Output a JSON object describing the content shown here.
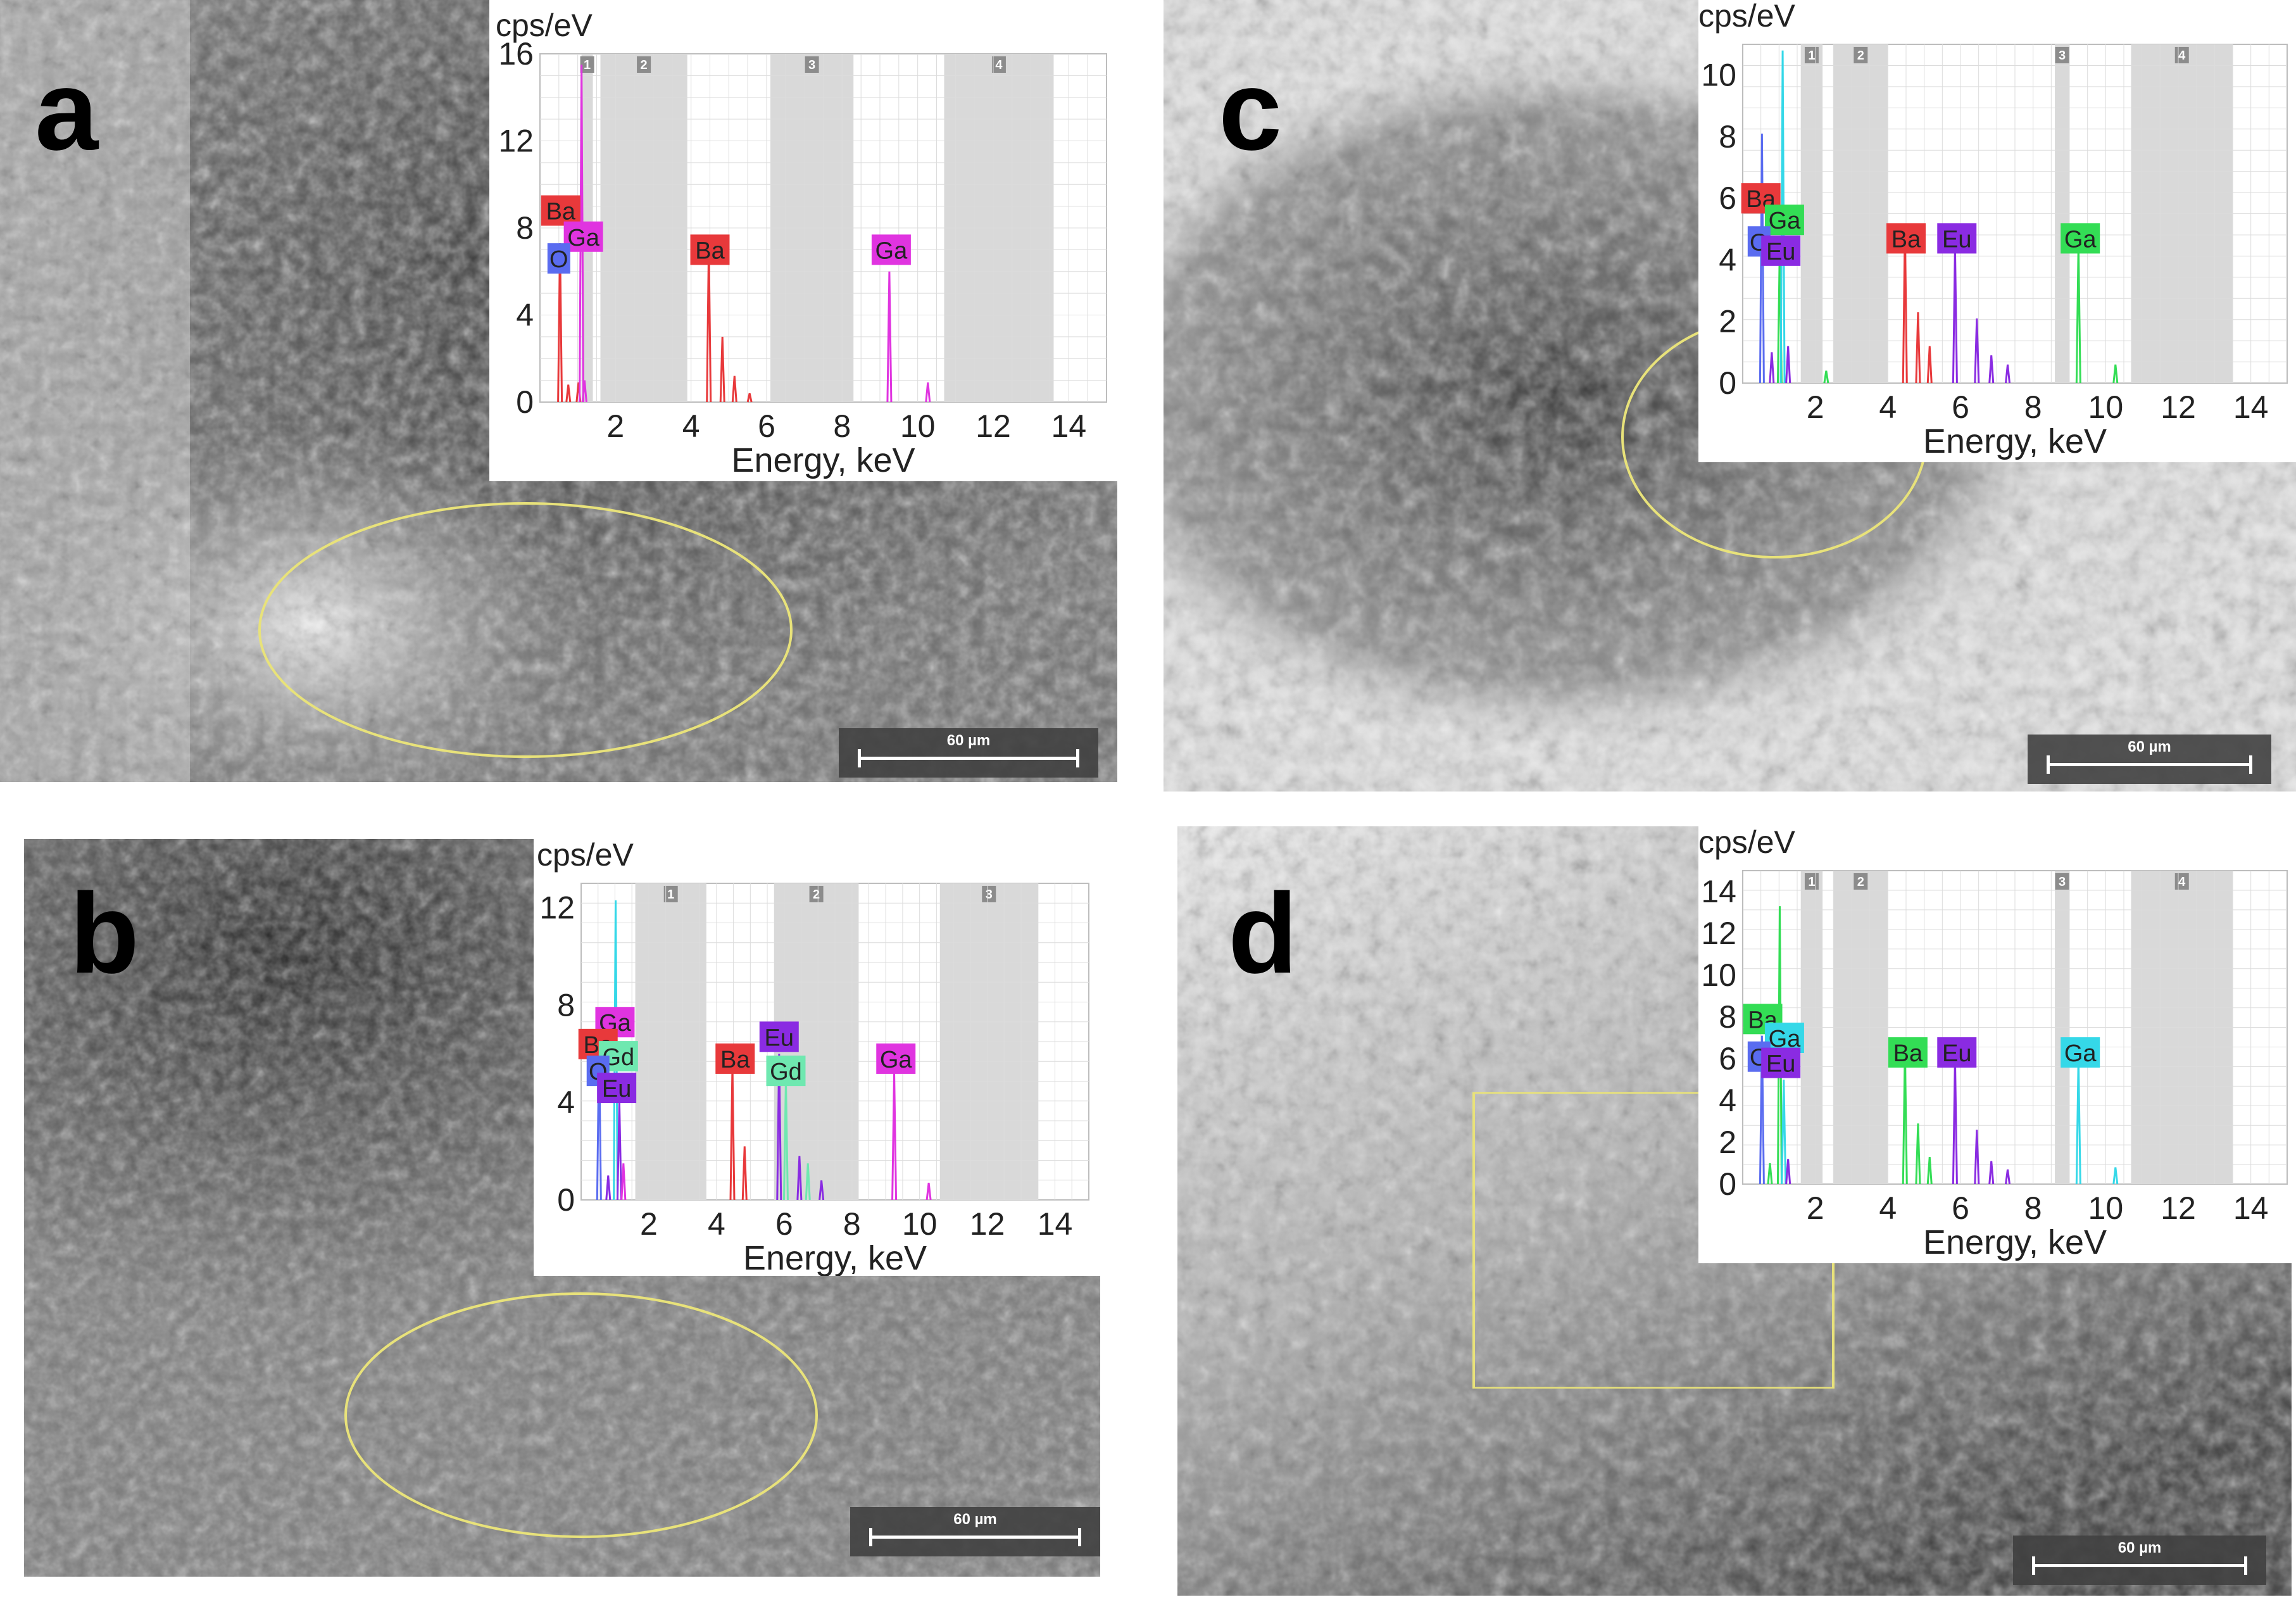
{
  "panels": [
    {
      "letter": "a",
      "spot_label": "",
      "scale_label": "60 µm"
    },
    {
      "letter": "b",
      "spot_label": "",
      "scale_label": "60 µm"
    },
    {
      "letter": "c",
      "spot_label": "",
      "scale_label": "60 µm"
    },
    {
      "letter": "d",
      "spot_label": "",
      "scale_label": "60 µm"
    }
  ],
  "colors": {
    "Ba_red": "#e8393b",
    "Ga_magenta": "#e034e0",
    "O_blue": "#5a6cf0",
    "Gd_mint": "#6fe8b0",
    "Eu_purple": "#8a2be2",
    "Ga_green": "#33dd55",
    "Ga_cyan": "#35d8e8",
    "Ba_green": "#33dd55",
    "region_ellipse": "#e8e27a",
    "grid": "#dcdcdc",
    "shade": "#d9d9d9"
  },
  "chart_data": [
    {
      "type": "line",
      "panel": "a",
      "ylabel": "cps/eV",
      "xlabel": "Energy, keV",
      "xlim": [
        0,
        15
      ],
      "ylim": [
        0,
        16
      ],
      "xticks": [
        2,
        4,
        6,
        8,
        10,
        12,
        14
      ],
      "yticks": [
        0,
        4,
        8,
        12,
        16
      ],
      "regions": [
        {
          "label": "1",
          "x0": 1.1,
          "x1": 1.4
        },
        {
          "label": "2",
          "x0": 1.6,
          "x1": 3.9
        },
        {
          "label": "3",
          "x0": 6.1,
          "x1": 8.3
        },
        {
          "label": "4",
          "x0": 10.7,
          "x1": 13.6
        }
      ],
      "peaks": [
        {
          "x": 0.53,
          "y": 7.3,
          "color": "#e8393b"
        },
        {
          "x": 0.75,
          "y": 0.8,
          "color": "#e8393b"
        },
        {
          "x": 1.02,
          "y": 0.9,
          "color": "#e8393b"
        },
        {
          "x": 1.1,
          "y": 15.5,
          "color": "#e034e0"
        },
        {
          "x": 1.18,
          "y": 1.0,
          "color": "#e034e0"
        },
        {
          "x": 4.47,
          "y": 7.3,
          "color": "#e8393b"
        },
        {
          "x": 4.83,
          "y": 3.0,
          "color": "#e8393b"
        },
        {
          "x": 5.15,
          "y": 1.2,
          "color": "#e8393b"
        },
        {
          "x": 5.55,
          "y": 0.4,
          "color": "#e8393b"
        },
        {
          "x": 9.25,
          "y": 6.0,
          "color": "#e034e0"
        },
        {
          "x": 10.27,
          "y": 0.9,
          "color": "#e034e0"
        }
      ],
      "element_labels": [
        {
          "text": "Ba",
          "x": 0.55,
          "y": 8.8,
          "color": "#e8393b"
        },
        {
          "text": "Ga",
          "x": 1.15,
          "y": 7.6,
          "color": "#e034e0"
        },
        {
          "text": "O",
          "x": 0.5,
          "y": 6.6,
          "color": "#5a6cf0"
        },
        {
          "text": "Ba",
          "x": 4.5,
          "y": 7.0,
          "color": "#e8393b"
        },
        {
          "text": "Ga",
          "x": 9.3,
          "y": 7.0,
          "color": "#e034e0"
        }
      ]
    },
    {
      "type": "line",
      "panel": "b",
      "ylabel": "cps/eV",
      "xlabel": "Energy, keV",
      "xlim": [
        0,
        15
      ],
      "ylim": [
        0,
        13
      ],
      "xticks": [
        2,
        4,
        6,
        8,
        10,
        12,
        14
      ],
      "yticks": [
        0,
        4,
        8,
        12
      ],
      "regions": [
        {
          "label": "1",
          "x0": 1.6,
          "x1": 3.7
        },
        {
          "label": "2",
          "x0": 5.7,
          "x1": 8.2
        },
        {
          "label": "3",
          "x0": 10.6,
          "x1": 13.5
        }
      ],
      "peaks": [
        {
          "x": 0.53,
          "y": 6.5,
          "color": "#5a6cf0"
        },
        {
          "x": 0.8,
          "y": 1.0,
          "color": "#8a2be2"
        },
        {
          "x": 1.02,
          "y": 12.3,
          "color": "#35d8e8"
        },
        {
          "x": 1.13,
          "y": 4.0,
          "color": "#8a2be2"
        },
        {
          "x": 1.25,
          "y": 1.5,
          "color": "#e034e0"
        },
        {
          "x": 4.47,
          "y": 5.5,
          "color": "#e8393b"
        },
        {
          "x": 4.83,
          "y": 2.2,
          "color": "#e8393b"
        },
        {
          "x": 5.85,
          "y": 6.0,
          "color": "#8a2be2"
        },
        {
          "x": 6.05,
          "y": 5.0,
          "color": "#6fe8b0"
        },
        {
          "x": 6.45,
          "y": 1.8,
          "color": "#8a2be2"
        },
        {
          "x": 6.7,
          "y": 1.5,
          "color": "#6fe8b0"
        },
        {
          "x": 7.1,
          "y": 0.8,
          "color": "#8a2be2"
        },
        {
          "x": 9.25,
          "y": 5.2,
          "color": "#e034e0"
        },
        {
          "x": 10.27,
          "y": 0.7,
          "color": "#e034e0"
        }
      ],
      "element_labels": [
        {
          "text": "Ga",
          "x": 1.0,
          "y": 7.3,
          "color": "#e034e0"
        },
        {
          "text": "Ba",
          "x": 0.5,
          "y": 6.4,
          "color": "#e8393b"
        },
        {
          "text": "Gd",
          "x": 1.1,
          "y": 5.9,
          "color": "#6fe8b0"
        },
        {
          "text": "O",
          "x": 0.5,
          "y": 5.3,
          "color": "#5a6cf0"
        },
        {
          "text": "Eu",
          "x": 1.05,
          "y": 4.6,
          "color": "#8a2be2"
        },
        {
          "text": "Ba",
          "x": 4.55,
          "y": 5.8,
          "color": "#e8393b"
        },
        {
          "text": "Eu",
          "x": 5.85,
          "y": 6.7,
          "color": "#8a2be2"
        },
        {
          "text": "Gd",
          "x": 6.05,
          "y": 5.3,
          "color": "#6fe8b0"
        },
        {
          "text": "Ga",
          "x": 9.3,
          "y": 5.8,
          "color": "#e034e0"
        }
      ]
    },
    {
      "type": "line",
      "panel": "c",
      "ylabel": "cps/eV",
      "xlabel": "Energy, keV",
      "xlim": [
        0,
        15
      ],
      "ylim": [
        0,
        11
      ],
      "xticks": [
        2,
        4,
        6,
        8,
        10,
        12,
        14
      ],
      "yticks": [
        0,
        2,
        4,
        6,
        8,
        10
      ],
      "regions": [
        {
          "label": "1",
          "x0": 1.6,
          "x1": 2.2
        },
        {
          "label": "2",
          "x0": 2.5,
          "x1": 4.0
        },
        {
          "label": "3",
          "x0": 8.6,
          "x1": 9.0
        },
        {
          "label": "4",
          "x0": 10.7,
          "x1": 13.5
        }
      ],
      "peaks": [
        {
          "x": 0.53,
          "y": 8.1,
          "color": "#5a6cf0"
        },
        {
          "x": 0.8,
          "y": 1.0,
          "color": "#8a2be2"
        },
        {
          "x": 1.02,
          "y": 4.5,
          "color": "#33dd55"
        },
        {
          "x": 1.1,
          "y": 10.8,
          "color": "#35d8e8"
        },
        {
          "x": 1.25,
          "y": 1.2,
          "color": "#8a2be2"
        },
        {
          "x": 2.3,
          "y": 0.4,
          "color": "#33dd55"
        },
        {
          "x": 4.47,
          "y": 5.1,
          "color": "#e8393b"
        },
        {
          "x": 4.83,
          "y": 2.3,
          "color": "#e8393b"
        },
        {
          "x": 5.15,
          "y": 1.2,
          "color": "#e8393b"
        },
        {
          "x": 5.85,
          "y": 4.4,
          "color": "#8a2be2"
        },
        {
          "x": 6.45,
          "y": 2.1,
          "color": "#8a2be2"
        },
        {
          "x": 6.85,
          "y": 0.9,
          "color": "#8a2be2"
        },
        {
          "x": 7.3,
          "y": 0.6,
          "color": "#8a2be2"
        },
        {
          "x": 9.25,
          "y": 4.5,
          "color": "#33dd55"
        },
        {
          "x": 10.27,
          "y": 0.6,
          "color": "#33dd55"
        }
      ],
      "element_labels": [
        {
          "text": "Ba",
          "x": 0.5,
          "y": 6.0,
          "color": "#e8393b"
        },
        {
          "text": "Ga",
          "x": 1.15,
          "y": 5.3,
          "color": "#33dd55"
        },
        {
          "text": "O",
          "x": 0.45,
          "y": 4.6,
          "color": "#5a6cf0"
        },
        {
          "text": "Eu",
          "x": 1.05,
          "y": 4.3,
          "color": "#8a2be2"
        },
        {
          "text": "Ba",
          "x": 4.5,
          "y": 4.7,
          "color": "#e8393b"
        },
        {
          "text": "Eu",
          "x": 5.9,
          "y": 4.7,
          "color": "#8a2be2"
        },
        {
          "text": "Ga",
          "x": 9.3,
          "y": 4.7,
          "color": "#33dd55"
        }
      ]
    },
    {
      "type": "line",
      "panel": "d",
      "ylabel": "cps/eV",
      "xlabel": "Energy, keV",
      "xlim": [
        0,
        15
      ],
      "ylim": [
        0,
        15
      ],
      "xticks": [
        2,
        4,
        6,
        8,
        10,
        12,
        14
      ],
      "yticks": [
        0,
        2,
        4,
        6,
        8,
        10,
        12,
        14
      ],
      "regions": [
        {
          "label": "1",
          "x0": 1.6,
          "x1": 2.2
        },
        {
          "label": "2",
          "x0": 2.5,
          "x1": 4.0
        },
        {
          "label": "3",
          "x0": 8.6,
          "x1": 9.0
        },
        {
          "label": "4",
          "x0": 10.7,
          "x1": 13.5
        }
      ],
      "peaks": [
        {
          "x": 0.53,
          "y": 7.1,
          "color": "#5a6cf0"
        },
        {
          "x": 0.75,
          "y": 1.0,
          "color": "#33dd55"
        },
        {
          "x": 1.02,
          "y": 13.3,
          "color": "#33dd55"
        },
        {
          "x": 1.13,
          "y": 5.0,
          "color": "#35d8e8"
        },
        {
          "x": 1.25,
          "y": 1.2,
          "color": "#8a2be2"
        },
        {
          "x": 4.47,
          "y": 6.5,
          "color": "#33dd55"
        },
        {
          "x": 4.83,
          "y": 2.9,
          "color": "#33dd55"
        },
        {
          "x": 5.15,
          "y": 1.3,
          "color": "#33dd55"
        },
        {
          "x": 5.85,
          "y": 6.0,
          "color": "#8a2be2"
        },
        {
          "x": 6.45,
          "y": 2.6,
          "color": "#8a2be2"
        },
        {
          "x": 6.85,
          "y": 1.1,
          "color": "#8a2be2"
        },
        {
          "x": 7.3,
          "y": 0.7,
          "color": "#8a2be2"
        },
        {
          "x": 9.25,
          "y": 6.0,
          "color": "#35d8e8"
        },
        {
          "x": 10.27,
          "y": 0.8,
          "color": "#35d8e8"
        }
      ],
      "element_labels": [
        {
          "text": "Ba",
          "x": 0.55,
          "y": 7.9,
          "color": "#33dd55"
        },
        {
          "text": "Ga",
          "x": 1.15,
          "y": 7.0,
          "color": "#35d8e8"
        },
        {
          "text": "O",
          "x": 0.45,
          "y": 6.1,
          "color": "#5a6cf0"
        },
        {
          "text": "Eu",
          "x": 1.05,
          "y": 5.8,
          "color": "#8a2be2"
        },
        {
          "text": "Ba",
          "x": 4.55,
          "y": 6.3,
          "color": "#33dd55"
        },
        {
          "text": "Eu",
          "x": 5.9,
          "y": 6.3,
          "color": "#8a2be2"
        },
        {
          "text": "Ga",
          "x": 9.3,
          "y": 6.3,
          "color": "#35d8e8"
        }
      ]
    }
  ]
}
